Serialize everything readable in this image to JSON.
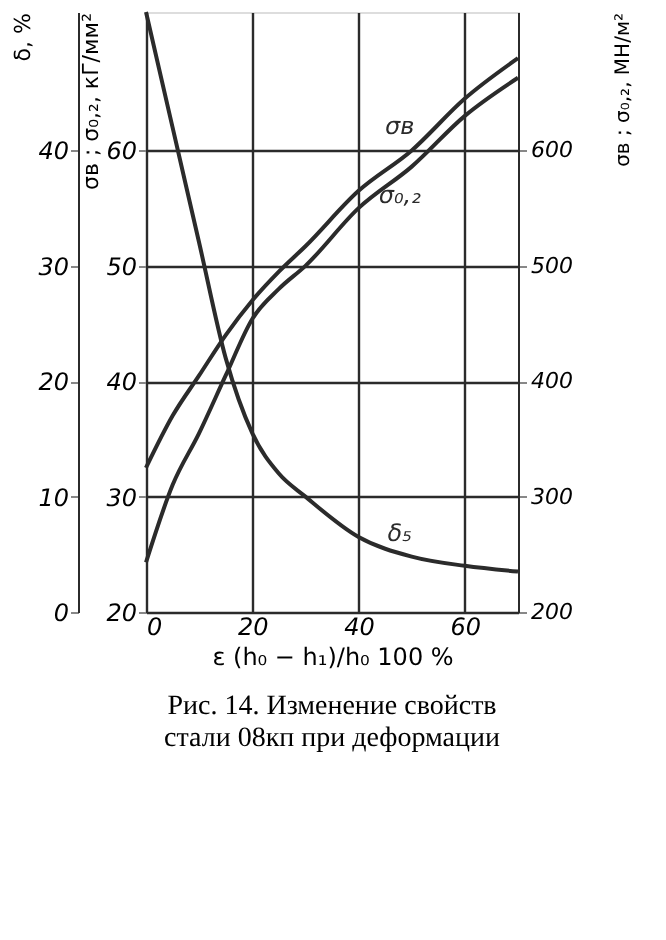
{
  "chart_data": {
    "type": "line",
    "title": "Рис. 14. Изменение свойств стали 08кп при деформации",
    "xlabel": "ε (h₀ − h₁)/h₀ 100 %",
    "ylabel": "δ, %",
    "y2label": "σв ; σ₀,₂, кГ/мм²",
    "y3label": "σв ; σ₀,₂, МН/м²",
    "x": [
      0,
      5,
      10,
      15,
      20,
      25,
      30,
      40,
      50,
      60,
      70
    ],
    "series": [
      {
        "name": "σв",
        "color": "#2b2b2b",
        "axis": "y2",
        "values": [
          32.5,
          37,
          40.5,
          44,
          47,
          49.5,
          51.7,
          56.5,
          60,
          64.5,
          68
        ]
      },
      {
        "name": "σ₀,₂",
        "color": "#2b2b2b",
        "axis": "y2",
        "values": [
          24.3,
          31,
          35.5,
          40.5,
          45.4,
          48,
          50,
          55,
          58.6,
          63,
          66.3
        ]
      },
      {
        "name": "δ₅",
        "color": "#2b2b2b",
        "values": [
          52,
          42,
          32,
          22,
          15.5,
          12,
          10,
          6.5,
          4.8,
          4,
          3.5
        ]
      }
    ],
    "xlim": [
      0,
      70
    ],
    "xticks": [
      0,
      20,
      40,
      60
    ],
    "ylim": [
      0,
      52
    ],
    "yticks": [
      0,
      10,
      20,
      30,
      40
    ],
    "y2lim": [
      20,
      72
    ],
    "y2ticks": [
      20,
      30,
      40,
      50,
      60
    ],
    "y3lim": [
      200,
      720
    ],
    "y3ticks": [
      200,
      300,
      400,
      500,
      600
    ],
    "grid": true,
    "marker": "none",
    "line_style": "solid"
  }
}
